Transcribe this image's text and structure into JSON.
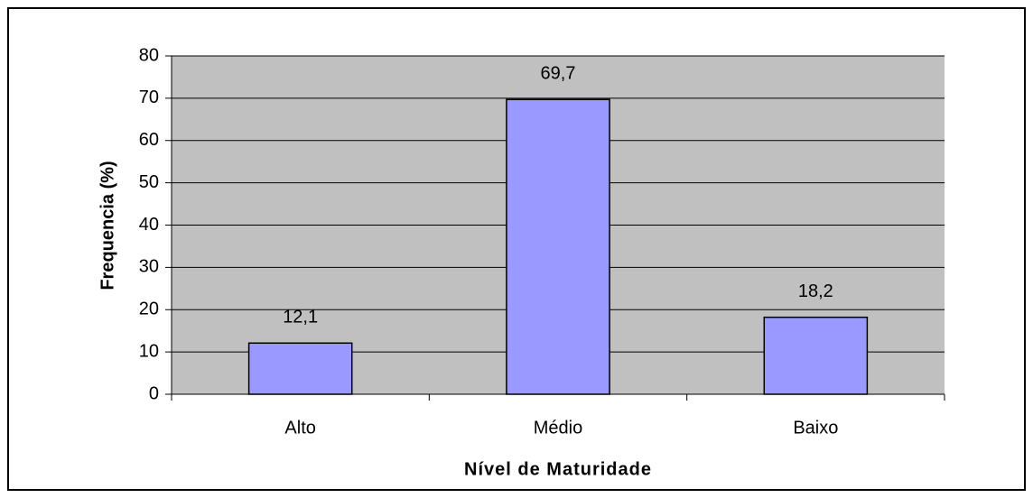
{
  "chart_data": {
    "type": "bar",
    "categories": [
      "Alto",
      "Médio",
      "Baixo"
    ],
    "values": [
      12.1,
      69.7,
      18.2
    ],
    "value_labels": [
      "12,1",
      "69,7",
      "18,2"
    ],
    "color": "#9999ff",
    "x_label": "Nível de Maturidade",
    "y_label": "Frequencia (%)",
    "ylim": [
      0,
      80
    ],
    "yticks": [
      0,
      10,
      20,
      30,
      40,
      50,
      60,
      70,
      80
    ],
    "grid": true
  }
}
